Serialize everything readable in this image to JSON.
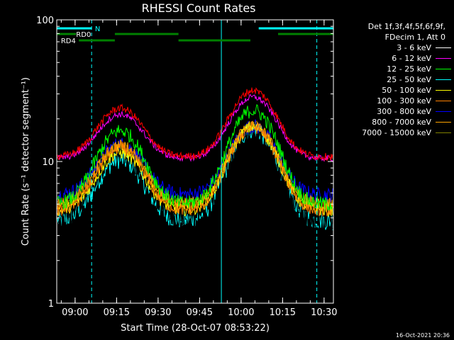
{
  "chart_data": {
    "type": "line",
    "title": "RHESSI Count Rates",
    "xlabel": "Start Time (28-Oct-07 08:53:22)",
    "ylabel": "Count Rate (s⁻¹ detector segment⁻¹)",
    "y_scale": "log",
    "ylim": [
      1,
      100
    ],
    "y_ticks": [
      "1",
      "10",
      "100"
    ],
    "x_range_minutes_after_start": [
      0,
      100
    ],
    "x_ticks": [
      {
        "label": "09:00",
        "minutes": 6.63
      },
      {
        "label": "09:15",
        "minutes": 21.63
      },
      {
        "label": "09:30",
        "minutes": 36.63
      },
      {
        "label": "09:45",
        "minutes": 51.63
      },
      {
        "label": "10:00",
        "minutes": 66.63
      },
      {
        "label": "10:15",
        "minutes": 81.63
      },
      {
        "label": "10:30",
        "minutes": 96.63
      }
    ],
    "legend_header": [
      "Det 1f,3f,4f,5f,6f,9f,",
      "FDecim 1, Att 0"
    ],
    "legend_placement": "right",
    "series": [
      {
        "name": "3 - 6 keV",
        "color": "#000000",
        "base": 4.0,
        "amp1": 8.5,
        "amp2": 13.0,
        "noise": 0.25
      },
      {
        "name": "6 - 12 keV",
        "color": "#ff00ff",
        "base": 10.5,
        "amp1": 11.0,
        "amp2": 18.0,
        "noise": 0.05
      },
      {
        "name": "12 - 25 keV",
        "color": "#00ff00",
        "base": 5.0,
        "amp1": 11.5,
        "amp2": 18.0,
        "noise": 0.12
      },
      {
        "name": "25 - 50 keV",
        "color": "#00ffff",
        "base": 3.8,
        "amp1": 6.5,
        "amp2": 13.0,
        "noise": 0.15
      },
      {
        "name": "50 - 100 keV",
        "color": "#ffff00",
        "base": 4.5,
        "amp1": 7.0,
        "amp2": 13.0,
        "noise": 0.1
      },
      {
        "name": "100 - 300 keV",
        "color": "#ff8000",
        "base": 4.5,
        "amp1": 8.0,
        "amp2": 13.0,
        "noise": 0.1
      },
      {
        "name": "300 - 800 keV",
        "color": "#0000ff",
        "base": 5.8,
        "amp1": 7.5,
        "amp2": 12.0,
        "noise": 0.12
      },
      {
        "name": "800 - 7000 keV",
        "color": "#ffa500",
        "base": 5.0,
        "amp1": 8.0,
        "amp2": 13.0,
        "noise": 0.1
      },
      {
        "name": "7000 - 15000 keV",
        "color": "#808000",
        "base": 5.0,
        "amp1": 8.0,
        "amp2": 13.0,
        "noise": 0.08
      },
      {
        "name": "",
        "color": "#ff0000",
        "base": 10.8,
        "amp1": 13.0,
        "amp2": 21.0,
        "noise": 0.06
      }
    ],
    "peaks_minutes": [
      23,
      71
    ],
    "peak_width_minutes": 10,
    "eclipse_boundaries_minutes": [
      0,
      12.6,
      59.5,
      94
    ],
    "saa_boundaries_dashed_minutes": [
      12.6,
      94
    ],
    "annotations": [
      {
        "text": "RD0",
        "minutes": 7
      },
      {
        "text": "N",
        "minutes": 13.8
      },
      {
        "text": "RD4",
        "minutes": 1.5
      }
    ],
    "bars": [
      {
        "row": "top",
        "color": "#00ffff",
        "from": 0,
        "to": 12.6
      },
      {
        "row": "top",
        "color": "#00ffff",
        "from": 73,
        "to": 100
      },
      {
        "row": "mid",
        "color": "#008000",
        "from": 0,
        "to": 7
      },
      {
        "row": "mid",
        "color": "#008000",
        "from": 21,
        "to": 44
      },
      {
        "row": "mid",
        "color": "#008000",
        "from": 80,
        "to": 100
      },
      {
        "row": "low",
        "color": "#008000",
        "from": 8,
        "to": 21
      },
      {
        "row": "low",
        "color": "#008000",
        "from": 44,
        "to": 70
      }
    ]
  },
  "footer": "16-Oct-2021 20:36"
}
